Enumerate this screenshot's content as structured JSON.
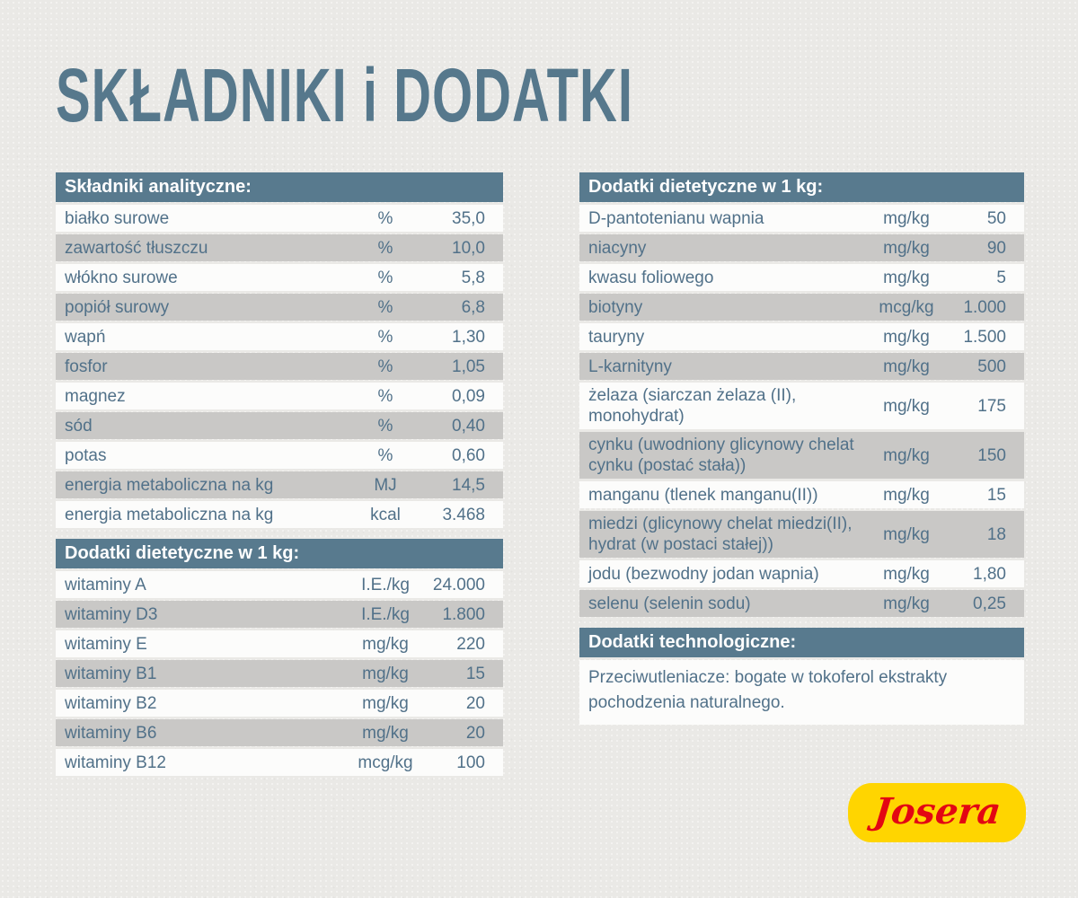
{
  "page": {
    "title": "SKŁADNIKI i DODATKI"
  },
  "tables": {
    "analytical": {
      "header": "Składniki analityczne:",
      "rows": [
        {
          "name": "białko surowe",
          "unit": "%",
          "value": "35,0"
        },
        {
          "name": "zawartość tłuszczu",
          "unit": "%",
          "value": "10,0"
        },
        {
          "name": "włókno surowe",
          "unit": "%",
          "value": "5,8"
        },
        {
          "name": "popiół surowy",
          "unit": "%",
          "value": "6,8"
        },
        {
          "name": "wapń",
          "unit": "%",
          "value": "1,30"
        },
        {
          "name": "fosfor",
          "unit": "%",
          "value": "1,05"
        },
        {
          "name": "magnez",
          "unit": "%",
          "value": "0,09"
        },
        {
          "name": "sód",
          "unit": "%",
          "value": "0,40"
        },
        {
          "name": "potas",
          "unit": "%",
          "value": "0,60"
        },
        {
          "name": "energia metaboliczna na kg",
          "unit": "MJ",
          "value": "14,5"
        },
        {
          "name": "energia metaboliczna na kg",
          "unit": "kcal",
          "value": "3.468"
        }
      ]
    },
    "dietary_vitamins": {
      "header": "Dodatki dietetyczne w 1 kg:",
      "rows": [
        {
          "name": "witaminy A",
          "unit": "I.E./kg",
          "value": "24.000"
        },
        {
          "name": "witaminy D3",
          "unit": "I.E./kg",
          "value": "1.800"
        },
        {
          "name": "witaminy E",
          "unit": "mg/kg",
          "value": "220"
        },
        {
          "name": "witaminy B1",
          "unit": "mg/kg",
          "value": "15"
        },
        {
          "name": "witaminy B2",
          "unit": "mg/kg",
          "value": "20"
        },
        {
          "name": "witaminy B6",
          "unit": "mg/kg",
          "value": "20"
        },
        {
          "name": "witaminy B12",
          "unit": "mcg/kg",
          "value": "100"
        }
      ]
    },
    "dietary_minerals": {
      "header": "Dodatki dietetyczne w 1 kg:",
      "rows": [
        {
          "name": "D-pantotenianu wapnia",
          "unit": "mg/kg",
          "value": "50"
        },
        {
          "name": "niacyny",
          "unit": "mg/kg",
          "value": "90"
        },
        {
          "name": "kwasu foliowego",
          "unit": "mg/kg",
          "value": "5"
        },
        {
          "name": "biotyny",
          "unit": "mcg/kg",
          "value": "1.000"
        },
        {
          "name": "tauryny",
          "unit": "mg/kg",
          "value": "1.500"
        },
        {
          "name": "L-karnityny",
          "unit": "mg/kg",
          "value": "500"
        },
        {
          "name": "żelaza (siarczan żelaza (II), monohydrat)",
          "unit": "mg/kg",
          "value": "175"
        },
        {
          "name": "cynku (uwodniony glicynowy chelat cynku (postać stała))",
          "unit": "mg/kg",
          "value": "150"
        },
        {
          "name": "manganu (tlenek manganu(II))",
          "unit": "mg/kg",
          "value": "15"
        },
        {
          "name": "miedzi (glicynowy chelat miedzi(II), hydrat (w postaci stałej))",
          "unit": "mg/kg",
          "value": "18"
        },
        {
          "name": "jodu (bezwodny jodan wapnia)",
          "unit": "mg/kg",
          "value": "1,80"
        },
        {
          "name": "selenu (selenin sodu)",
          "unit": "mg/kg",
          "value": "0,25"
        }
      ]
    },
    "technological": {
      "header": "Dodatki technologiczne:",
      "text": "Przeciwutleniacze: bogate w tokoferol ekstrakty pochodzenia naturalnego."
    }
  },
  "logo": {
    "text": "Josera"
  },
  "colors": {
    "header_bg": "#587a8e",
    "row_gray": "#c9c8c6",
    "row_white": "#fcfcfb",
    "body_text": "#517189",
    "title_text": "#56788c",
    "page_bg": "#eae9e6",
    "logo_yellow": "#ffd500",
    "logo_red": "#e30613"
  }
}
